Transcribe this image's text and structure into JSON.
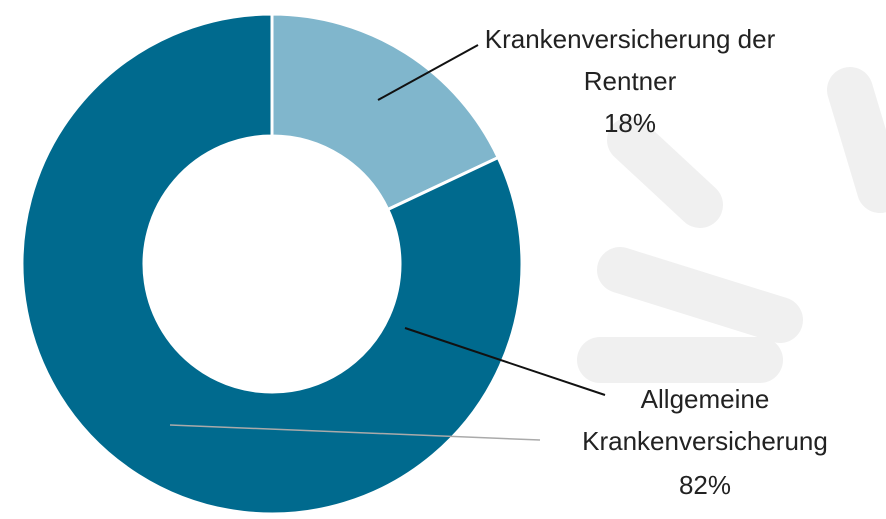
{
  "chart_data": {
    "type": "donut",
    "categories": [
      "Krankenversicherung der Rentner",
      "Allgemeine Krankenversicherung"
    ],
    "values": [
      18,
      82
    ],
    "value_labels": [
      "18%",
      "82%"
    ],
    "colors": [
      "#80b6cc",
      "#006a8e"
    ]
  }
}
